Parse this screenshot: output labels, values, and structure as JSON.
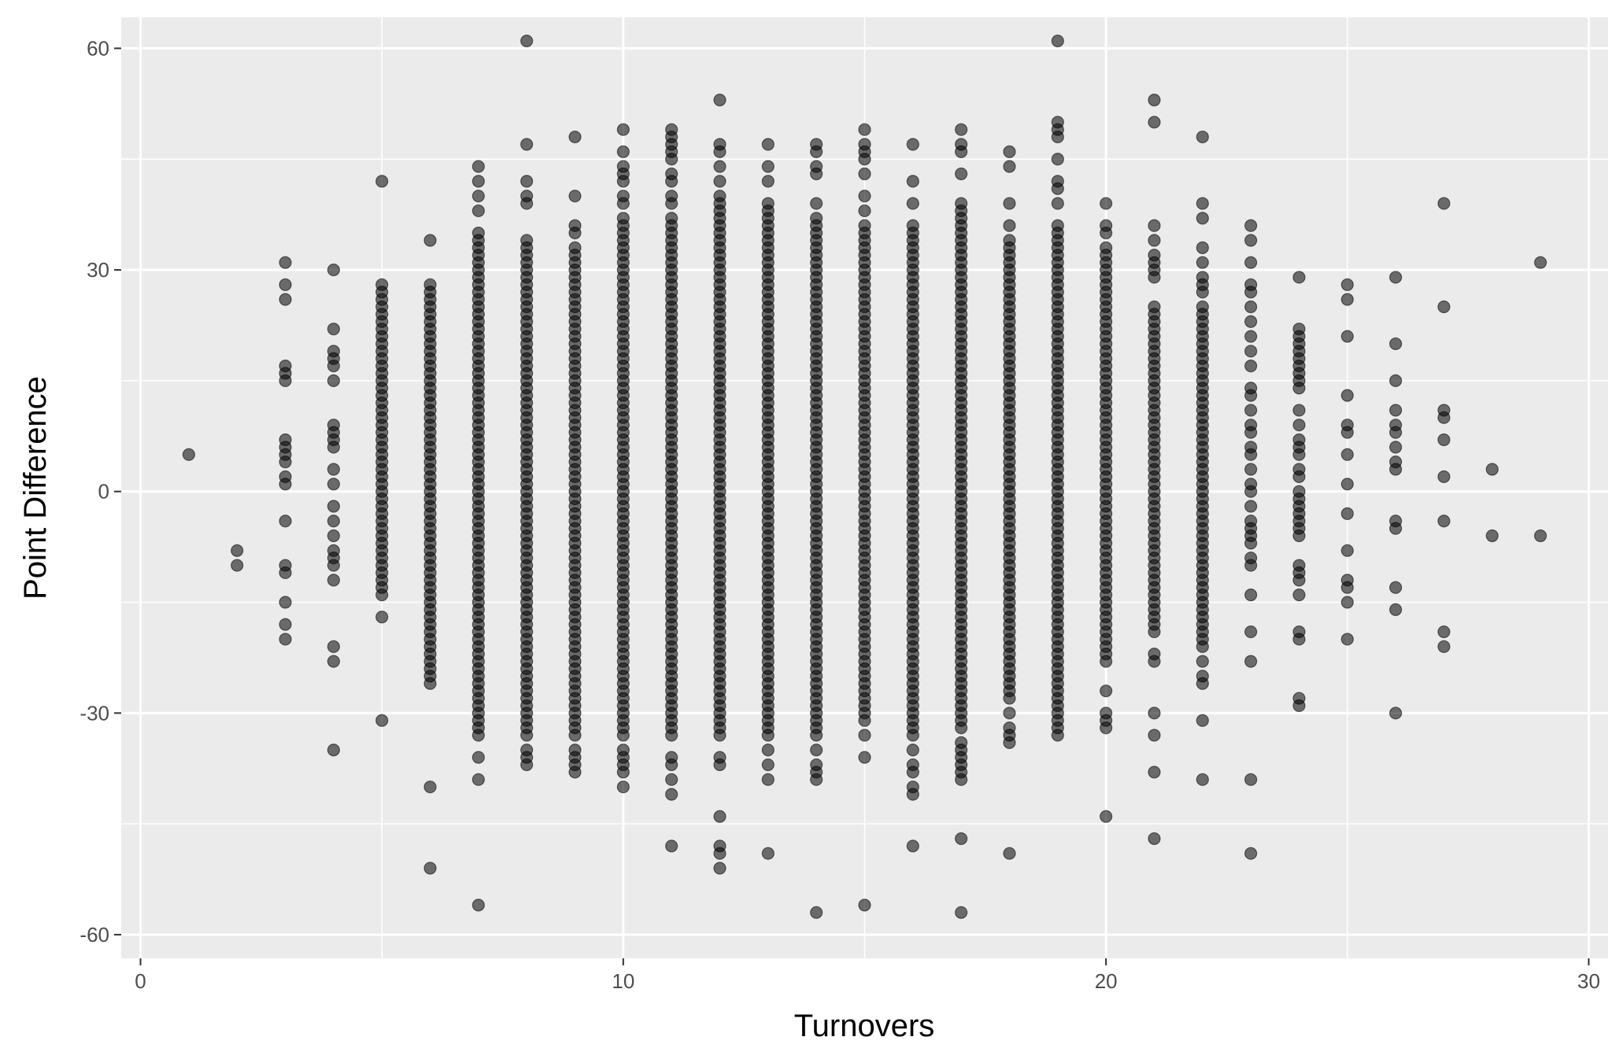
{
  "chart_data": {
    "type": "scatter",
    "title": "",
    "xlabel": "Turnovers",
    "ylabel": "Point Difference",
    "xlim": [
      -0.4,
      30.4
    ],
    "ylim": [
      -63.2,
      64.2
    ],
    "x_ticks": [
      0,
      10,
      20,
      30
    ],
    "x_tick_labels": [
      "0",
      "10",
      "20",
      "30"
    ],
    "y_ticks": [
      -60,
      -30,
      0,
      30,
      60
    ],
    "y_tick_labels": [
      "-60",
      "-30",
      "0",
      "30",
      "60"
    ],
    "grid": true,
    "legend": "none",
    "point_color": "#000000",
    "point_alpha": 0.55,
    "panel_background": "#ebebeb",
    "grid_color": "#ffffff",
    "points": [
      {
        "x": 1,
        "y": 5
      },
      {
        "x": 2,
        "y": -8
      },
      {
        "x": 2,
        "y": -10
      },
      {
        "x": 3,
        "y": 31
      },
      {
        "x": 3,
        "y": 28
      },
      {
        "x": 3,
        "y": 26
      },
      {
        "x": 3,
        "y": 17
      },
      {
        "x": 3,
        "y": 16
      },
      {
        "x": 3,
        "y": 15
      },
      {
        "x": 3,
        "y": 7
      },
      {
        "x": 3,
        "y": 6
      },
      {
        "x": 3,
        "y": 5
      },
      {
        "x": 3,
        "y": 4
      },
      {
        "x": 3,
        "y": 2
      },
      {
        "x": 3,
        "y": 1
      },
      {
        "x": 3,
        "y": -4
      },
      {
        "x": 3,
        "y": -10
      },
      {
        "x": 3,
        "y": -11
      },
      {
        "x": 3,
        "y": -15
      },
      {
        "x": 3,
        "y": -18
      },
      {
        "x": 3,
        "y": -20
      },
      {
        "x": 4,
        "y": 30
      },
      {
        "x": 4,
        "y": 22
      },
      {
        "x": 4,
        "y": 19
      },
      {
        "x": 4,
        "y": 18
      },
      {
        "x": 4,
        "y": 17
      },
      {
        "x": 4,
        "y": 15
      },
      {
        "x": 4,
        "y": 9
      },
      {
        "x": 4,
        "y": 8
      },
      {
        "x": 4,
        "y": 7
      },
      {
        "x": 4,
        "y": 6
      },
      {
        "x": 4,
        "y": 3
      },
      {
        "x": 4,
        "y": 1
      },
      {
        "x": 4,
        "y": -2
      },
      {
        "x": 4,
        "y": -4
      },
      {
        "x": 4,
        "y": -6
      },
      {
        "x": 4,
        "y": -8
      },
      {
        "x": 4,
        "y": -9
      },
      {
        "x": 4,
        "y": -10
      },
      {
        "x": 4,
        "y": -12
      },
      {
        "x": 4,
        "y": -21
      },
      {
        "x": 4,
        "y": -23
      },
      {
        "x": 4,
        "y": -35
      },
      {
        "x": 5,
        "y": 42
      },
      {
        "x": 5,
        "y": -17
      },
      {
        "x": 5,
        "y": -31
      },
      {
        "x": 6,
        "y": 34
      },
      {
        "x": 6,
        "y": -40
      },
      {
        "x": 6,
        "y": -51
      },
      {
        "x": 7,
        "y": 44
      },
      {
        "x": 7,
        "y": 42
      },
      {
        "x": 7,
        "y": 40
      },
      {
        "x": 7,
        "y": 38
      },
      {
        "x": 7,
        "y": -36
      },
      {
        "x": 7,
        "y": -39
      },
      {
        "x": 7,
        "y": -56
      },
      {
        "x": 8,
        "y": 61
      },
      {
        "x": 8,
        "y": 47
      },
      {
        "x": 8,
        "y": 42
      },
      {
        "x": 8,
        "y": 40
      },
      {
        "x": 8,
        "y": 39
      },
      {
        "x": 8,
        "y": -35
      },
      {
        "x": 8,
        "y": -36
      },
      {
        "x": 8,
        "y": -37
      },
      {
        "x": 9,
        "y": 48
      },
      {
        "x": 9,
        "y": 40
      },
      {
        "x": 9,
        "y": 36
      },
      {
        "x": 9,
        "y": 35
      },
      {
        "x": 9,
        "y": -35
      },
      {
        "x": 9,
        "y": -36
      },
      {
        "x": 9,
        "y": -37
      },
      {
        "x": 9,
        "y": -38
      },
      {
        "x": 10,
        "y": 49
      },
      {
        "x": 10,
        "y": 46
      },
      {
        "x": 10,
        "y": 44
      },
      {
        "x": 10,
        "y": 43
      },
      {
        "x": 10,
        "y": 42
      },
      {
        "x": 10,
        "y": 40
      },
      {
        "x": 10,
        "y": 39
      },
      {
        "x": 10,
        "y": -35
      },
      {
        "x": 10,
        "y": -36
      },
      {
        "x": 10,
        "y": -37
      },
      {
        "x": 10,
        "y": -38
      },
      {
        "x": 10,
        "y": -40
      },
      {
        "x": 11,
        "y": 49
      },
      {
        "x": 11,
        "y": 48
      },
      {
        "x": 11,
        "y": 47
      },
      {
        "x": 11,
        "y": 46
      },
      {
        "x": 11,
        "y": 45
      },
      {
        "x": 11,
        "y": 43
      },
      {
        "x": 11,
        "y": 42
      },
      {
        "x": 11,
        "y": 40
      },
      {
        "x": 11,
        "y": 39
      },
      {
        "x": 11,
        "y": -36
      },
      {
        "x": 11,
        "y": -37
      },
      {
        "x": 11,
        "y": -39
      },
      {
        "x": 11,
        "y": -41
      },
      {
        "x": 11,
        "y": -48
      },
      {
        "x": 12,
        "y": 53
      },
      {
        "x": 12,
        "y": 47
      },
      {
        "x": 12,
        "y": 46
      },
      {
        "x": 12,
        "y": 44
      },
      {
        "x": 12,
        "y": 42
      },
      {
        "x": 12,
        "y": 40
      },
      {
        "x": 12,
        "y": 39
      },
      {
        "x": 12,
        "y": -36
      },
      {
        "x": 12,
        "y": -37
      },
      {
        "x": 12,
        "y": -44
      },
      {
        "x": 12,
        "y": -48
      },
      {
        "x": 12,
        "y": -49
      },
      {
        "x": 12,
        "y": -51
      },
      {
        "x": 13,
        "y": 47
      },
      {
        "x": 13,
        "y": 44
      },
      {
        "x": 13,
        "y": 42
      },
      {
        "x": 13,
        "y": 39
      },
      {
        "x": 13,
        "y": -35
      },
      {
        "x": 13,
        "y": -37
      },
      {
        "x": 13,
        "y": -39
      },
      {
        "x": 13,
        "y": -49
      },
      {
        "x": 14,
        "y": 47
      },
      {
        "x": 14,
        "y": 46
      },
      {
        "x": 14,
        "y": 44
      },
      {
        "x": 14,
        "y": 43
      },
      {
        "x": 14,
        "y": 39
      },
      {
        "x": 14,
        "y": -35
      },
      {
        "x": 14,
        "y": -37
      },
      {
        "x": 14,
        "y": -38
      },
      {
        "x": 14,
        "y": -39
      },
      {
        "x": 14,
        "y": -57
      },
      {
        "x": 15,
        "y": 49
      },
      {
        "x": 15,
        "y": 47
      },
      {
        "x": 15,
        "y": 46
      },
      {
        "x": 15,
        "y": 45
      },
      {
        "x": 15,
        "y": 43
      },
      {
        "x": 15,
        "y": 40
      },
      {
        "x": 15,
        "y": 38
      },
      {
        "x": 15,
        "y": -33
      },
      {
        "x": 15,
        "y": -36
      },
      {
        "x": 15,
        "y": -56
      },
      {
        "x": 16,
        "y": 47
      },
      {
        "x": 16,
        "y": 42
      },
      {
        "x": 16,
        "y": 39
      },
      {
        "x": 16,
        "y": 36
      },
      {
        "x": 16,
        "y": -35
      },
      {
        "x": 16,
        "y": -37
      },
      {
        "x": 16,
        "y": -38
      },
      {
        "x": 16,
        "y": -40
      },
      {
        "x": 16,
        "y": -41
      },
      {
        "x": 16,
        "y": -48
      },
      {
        "x": 17,
        "y": 49
      },
      {
        "x": 17,
        "y": 47
      },
      {
        "x": 17,
        "y": 46
      },
      {
        "x": 17,
        "y": 43
      },
      {
        "x": 17,
        "y": 39
      },
      {
        "x": 17,
        "y": 38
      },
      {
        "x": 17,
        "y": -34
      },
      {
        "x": 17,
        "y": -35
      },
      {
        "x": 17,
        "y": -36
      },
      {
        "x": 17,
        "y": -37
      },
      {
        "x": 17,
        "y": -38
      },
      {
        "x": 17,
        "y": -39
      },
      {
        "x": 17,
        "y": -47
      },
      {
        "x": 17,
        "y": -57
      },
      {
        "x": 18,
        "y": 46
      },
      {
        "x": 18,
        "y": 44
      },
      {
        "x": 18,
        "y": 39
      },
      {
        "x": 18,
        "y": 36
      },
      {
        "x": 18,
        "y": -30
      },
      {
        "x": 18,
        "y": -32
      },
      {
        "x": 18,
        "y": -33
      },
      {
        "x": 18,
        "y": -34
      },
      {
        "x": 18,
        "y": -49
      },
      {
        "x": 19,
        "y": 61
      },
      {
        "x": 19,
        "y": 50
      },
      {
        "x": 19,
        "y": 49
      },
      {
        "x": 19,
        "y": 48
      },
      {
        "x": 19,
        "y": 45
      },
      {
        "x": 19,
        "y": 42
      },
      {
        "x": 19,
        "y": 41
      },
      {
        "x": 19,
        "y": 39
      },
      {
        "x": 19,
        "y": 36
      },
      {
        "x": 19,
        "y": 35
      },
      {
        "x": 20,
        "y": 39
      },
      {
        "x": 20,
        "y": 36
      },
      {
        "x": 20,
        "y": 35
      },
      {
        "x": 20,
        "y": 33
      },
      {
        "x": 20,
        "y": 32
      },
      {
        "x": 20,
        "y": 31
      },
      {
        "x": 20,
        "y": 30
      },
      {
        "x": 20,
        "y": -23
      },
      {
        "x": 20,
        "y": -27
      },
      {
        "x": 20,
        "y": -30
      },
      {
        "x": 20,
        "y": -31
      },
      {
        "x": 20,
        "y": -32
      },
      {
        "x": 20,
        "y": -44
      },
      {
        "x": 21,
        "y": 53
      },
      {
        "x": 21,
        "y": 50
      },
      {
        "x": 21,
        "y": 36
      },
      {
        "x": 21,
        "y": 34
      },
      {
        "x": 21,
        "y": 32
      },
      {
        "x": 21,
        "y": 31
      },
      {
        "x": 21,
        "y": 30
      },
      {
        "x": 21,
        "y": 29
      },
      {
        "x": 21,
        "y": -22
      },
      {
        "x": 21,
        "y": -23
      },
      {
        "x": 21,
        "y": -30
      },
      {
        "x": 21,
        "y": -33
      },
      {
        "x": 21,
        "y": -38
      },
      {
        "x": 21,
        "y": -47
      },
      {
        "x": 22,
        "y": 48
      },
      {
        "x": 22,
        "y": 39
      },
      {
        "x": 22,
        "y": 37
      },
      {
        "x": 22,
        "y": 33
      },
      {
        "x": 22,
        "y": 31
      },
      {
        "x": 22,
        "y": 29
      },
      {
        "x": 22,
        "y": 28
      },
      {
        "x": 22,
        "y": 27
      },
      {
        "x": 22,
        "y": -23
      },
      {
        "x": 22,
        "y": -25
      },
      {
        "x": 22,
        "y": -26
      },
      {
        "x": 22,
        "y": -31
      },
      {
        "x": 22,
        "y": -39
      },
      {
        "x": 23,
        "y": 36
      },
      {
        "x": 23,
        "y": 34
      },
      {
        "x": 23,
        "y": 31
      },
      {
        "x": 23,
        "y": 28
      },
      {
        "x": 23,
        "y": 27
      },
      {
        "x": 23,
        "y": 25
      },
      {
        "x": 23,
        "y": 23
      },
      {
        "x": 23,
        "y": 21
      },
      {
        "x": 23,
        "y": 19
      },
      {
        "x": 23,
        "y": 17
      },
      {
        "x": 23,
        "y": 14
      },
      {
        "x": 23,
        "y": 13
      },
      {
        "x": 23,
        "y": 11
      },
      {
        "x": 23,
        "y": 9
      },
      {
        "x": 23,
        "y": 8
      },
      {
        "x": 23,
        "y": 6
      },
      {
        "x": 23,
        "y": 5
      },
      {
        "x": 23,
        "y": 3
      },
      {
        "x": 23,
        "y": 1
      },
      {
        "x": 23,
        "y": 0
      },
      {
        "x": 23,
        "y": -2
      },
      {
        "x": 23,
        "y": -4
      },
      {
        "x": 23,
        "y": -5
      },
      {
        "x": 23,
        "y": -6
      },
      {
        "x": 23,
        "y": -7
      },
      {
        "x": 23,
        "y": -9
      },
      {
        "x": 23,
        "y": -10
      },
      {
        "x": 23,
        "y": -14
      },
      {
        "x": 23,
        "y": -19
      },
      {
        "x": 23,
        "y": -23
      },
      {
        "x": 23,
        "y": -39
      },
      {
        "x": 23,
        "y": -49
      },
      {
        "x": 24,
        "y": 29
      },
      {
        "x": 24,
        "y": 22
      },
      {
        "x": 24,
        "y": 21
      },
      {
        "x": 24,
        "y": 20
      },
      {
        "x": 24,
        "y": 19
      },
      {
        "x": 24,
        "y": 18
      },
      {
        "x": 24,
        "y": 17
      },
      {
        "x": 24,
        "y": 16
      },
      {
        "x": 24,
        "y": 15
      },
      {
        "x": 24,
        "y": 14
      },
      {
        "x": 24,
        "y": 11
      },
      {
        "x": 24,
        "y": 9
      },
      {
        "x": 24,
        "y": 7
      },
      {
        "x": 24,
        "y": 6
      },
      {
        "x": 24,
        "y": 5
      },
      {
        "x": 24,
        "y": 3
      },
      {
        "x": 24,
        "y": 2
      },
      {
        "x": 24,
        "y": 0
      },
      {
        "x": 24,
        "y": -1
      },
      {
        "x": 24,
        "y": -2
      },
      {
        "x": 24,
        "y": -3
      },
      {
        "x": 24,
        "y": -4
      },
      {
        "x": 24,
        "y": -5
      },
      {
        "x": 24,
        "y": -6
      },
      {
        "x": 24,
        "y": -10
      },
      {
        "x": 24,
        "y": -11
      },
      {
        "x": 24,
        "y": -12
      },
      {
        "x": 24,
        "y": -14
      },
      {
        "x": 24,
        "y": -19
      },
      {
        "x": 24,
        "y": -20
      },
      {
        "x": 24,
        "y": -28
      },
      {
        "x": 24,
        "y": -29
      },
      {
        "x": 25,
        "y": 28
      },
      {
        "x": 25,
        "y": 26
      },
      {
        "x": 25,
        "y": 21
      },
      {
        "x": 25,
        "y": 13
      },
      {
        "x": 25,
        "y": 9
      },
      {
        "x": 25,
        "y": 8
      },
      {
        "x": 25,
        "y": 5
      },
      {
        "x": 25,
        "y": 1
      },
      {
        "x": 25,
        "y": -3
      },
      {
        "x": 25,
        "y": -8
      },
      {
        "x": 25,
        "y": -12
      },
      {
        "x": 25,
        "y": -13
      },
      {
        "x": 25,
        "y": -15
      },
      {
        "x": 25,
        "y": -20
      },
      {
        "x": 26,
        "y": 29
      },
      {
        "x": 26,
        "y": 20
      },
      {
        "x": 26,
        "y": 15
      },
      {
        "x": 26,
        "y": 11
      },
      {
        "x": 26,
        "y": 9
      },
      {
        "x": 26,
        "y": 8
      },
      {
        "x": 26,
        "y": 6
      },
      {
        "x": 26,
        "y": 4
      },
      {
        "x": 26,
        "y": 3
      },
      {
        "x": 26,
        "y": -4
      },
      {
        "x": 26,
        "y": -5
      },
      {
        "x": 26,
        "y": -13
      },
      {
        "x": 26,
        "y": -16
      },
      {
        "x": 26,
        "y": -30
      },
      {
        "x": 27,
        "y": 39
      },
      {
        "x": 27,
        "y": 25
      },
      {
        "x": 27,
        "y": 11
      },
      {
        "x": 27,
        "y": 10
      },
      {
        "x": 27,
        "y": 7
      },
      {
        "x": 27,
        "y": 2
      },
      {
        "x": 27,
        "y": -4
      },
      {
        "x": 27,
        "y": -19
      },
      {
        "x": 27,
        "y": -21
      },
      {
        "x": 28,
        "y": 3
      },
      {
        "x": 28,
        "y": -6
      },
      {
        "x": 29,
        "y": 31
      },
      {
        "x": 29,
        "y": -6
      }
    ],
    "dense_bands": [
      {
        "x": 5,
        "y_min": -14,
        "y_max": 28
      },
      {
        "x": 6,
        "y_min": -26,
        "y_max": 28
      },
      {
        "x": 7,
        "y_min": -33,
        "y_max": 35
      },
      {
        "x": 8,
        "y_min": -33,
        "y_max": 34
      },
      {
        "x": 9,
        "y_min": -33,
        "y_max": 33
      },
      {
        "x": 10,
        "y_min": -33,
        "y_max": 37
      },
      {
        "x": 11,
        "y_min": -33,
        "y_max": 37
      },
      {
        "x": 12,
        "y_min": -33,
        "y_max": 38
      },
      {
        "x": 13,
        "y_min": -33,
        "y_max": 38
      },
      {
        "x": 14,
        "y_min": -33,
        "y_max": 37
      },
      {
        "x": 15,
        "y_min": -31,
        "y_max": 36
      },
      {
        "x": 16,
        "y_min": -33,
        "y_max": 35
      },
      {
        "x": 17,
        "y_min": -32,
        "y_max": 37
      },
      {
        "x": 18,
        "y_min": -28,
        "y_max": 34
      },
      {
        "x": 19,
        "y_min": -33,
        "y_max": 34
      },
      {
        "x": 20,
        "y_min": -22,
        "y_max": 29
      },
      {
        "x": 21,
        "y_min": -19,
        "y_max": 25
      },
      {
        "x": 22,
        "y_min": -21,
        "y_max": 25
      }
    ],
    "dense_band_step": 1
  }
}
